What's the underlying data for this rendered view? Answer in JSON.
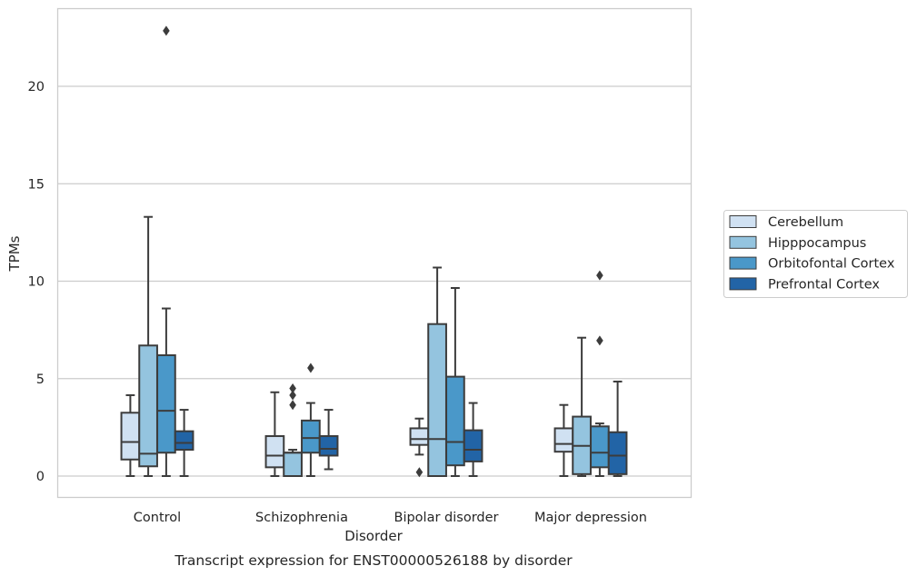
{
  "chart_data": {
    "type": "box",
    "xlabel": "Disorder",
    "ylabel": "TPMs",
    "caption": "Transcript expression for ENST00000526188 by disorder",
    "ylim": [
      -1.1,
      23.9
    ],
    "yticks": [
      0,
      5,
      10,
      15,
      20
    ],
    "grid": "horizontal",
    "legend_position": "right",
    "categories": [
      "Control",
      "Schizophrenia",
      "Bipolar disorder",
      "Major depression"
    ],
    "series": [
      {
        "name": "Cerebellum",
        "color": "#d0e1f2",
        "boxes": [
          {
            "whisker_low": 0,
            "q1": 0.85,
            "median": 1.75,
            "q3": 3.25,
            "whisker_high": 4.15,
            "outliers": []
          },
          {
            "whisker_low": 0,
            "q1": 0.45,
            "median": 1.05,
            "q3": 2.05,
            "whisker_high": 4.3,
            "outliers": []
          },
          {
            "whisker_low": 1.1,
            "q1": 1.6,
            "median": 1.9,
            "q3": 2.45,
            "whisker_high": 2.95,
            "outliers": [
              0.2
            ]
          },
          {
            "whisker_low": 0,
            "q1": 1.25,
            "median": 1.65,
            "q3": 2.45,
            "whisker_high": 3.65,
            "outliers": []
          }
        ]
      },
      {
        "name": "Hipppocampus",
        "color": "#94c4df",
        "boxes": [
          {
            "whisker_low": 0,
            "q1": 0.5,
            "median": 1.15,
            "q3": 6.7,
            "whisker_high": 13.3,
            "outliers": []
          },
          {
            "whisker_low": 0,
            "q1": 0,
            "median": 1.2,
            "q3": 1.2,
            "whisker_high": 1.35,
            "outliers": [
              3.65,
              4.15,
              4.5
            ]
          },
          {
            "whisker_low": 0,
            "q1": 0,
            "median": 1.9,
            "q3": 7.8,
            "whisker_high": 10.7,
            "outliers": []
          },
          {
            "whisker_low": 0,
            "q1": 0.1,
            "median": 1.55,
            "q3": 3.05,
            "whisker_high": 7.1,
            "outliers": []
          }
        ]
      },
      {
        "name": "Orbitofontal Cortex",
        "color": "#4a98c9",
        "boxes": [
          {
            "whisker_low": 0,
            "q1": 1.2,
            "median": 3.35,
            "q3": 6.2,
            "whisker_high": 8.6,
            "outliers": [
              22.85
            ]
          },
          {
            "whisker_low": 0,
            "q1": 1.2,
            "median": 1.95,
            "q3": 2.85,
            "whisker_high": 3.75,
            "outliers": [
              5.55
            ]
          },
          {
            "whisker_low": 0,
            "q1": 0.55,
            "median": 1.75,
            "q3": 5.1,
            "whisker_high": 9.65,
            "outliers": []
          },
          {
            "whisker_low": 0,
            "q1": 0.45,
            "median": 1.2,
            "q3": 2.55,
            "whisker_high": 2.7,
            "outliers": [
              6.95,
              10.3
            ]
          }
        ]
      },
      {
        "name": "Prefrontal Cortex",
        "color": "#2264a6",
        "boxes": [
          {
            "whisker_low": 0,
            "q1": 1.35,
            "median": 1.7,
            "q3": 2.3,
            "whisker_high": 3.4,
            "outliers": []
          },
          {
            "whisker_low": 0.35,
            "q1": 1.05,
            "median": 1.4,
            "q3": 2.05,
            "whisker_high": 3.4,
            "outliers": []
          },
          {
            "whisker_low": 0,
            "q1": 0.75,
            "median": 1.35,
            "q3": 2.35,
            "whisker_high": 3.75,
            "outliers": []
          },
          {
            "whisker_low": 0,
            "q1": 0.1,
            "median": 1.05,
            "q3": 2.25,
            "whisker_high": 4.85,
            "outliers": []
          }
        ]
      }
    ]
  }
}
